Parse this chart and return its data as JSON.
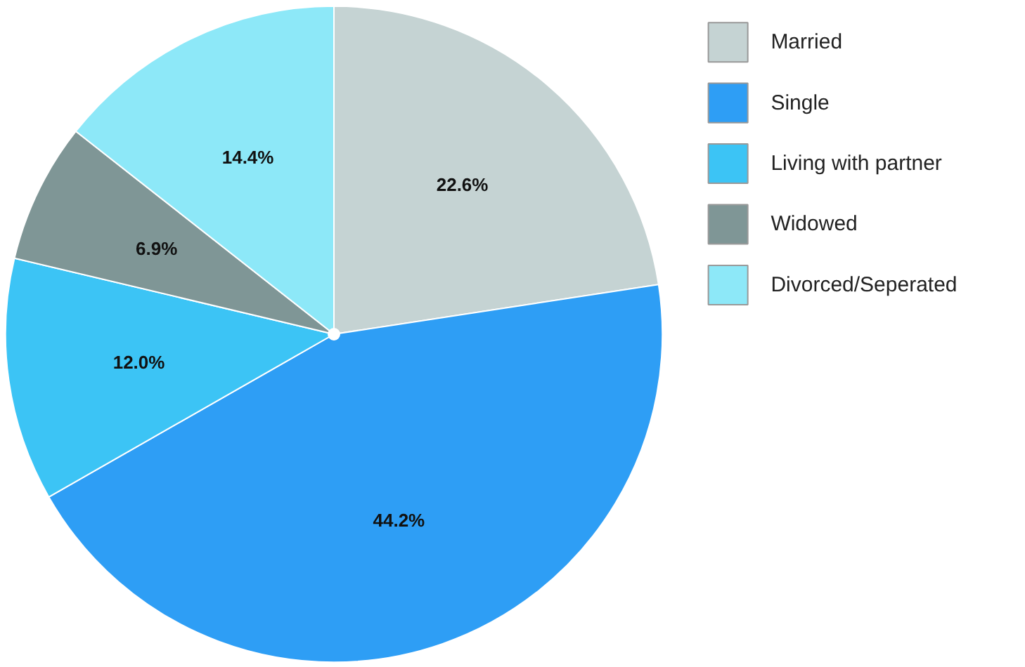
{
  "chart_data": {
    "type": "pie",
    "categories": [
      "Married",
      "Single",
      "Living with partner",
      "Widowed",
      "Divorced/Seperated"
    ],
    "values": [
      22.6,
      44.2,
      12.0,
      6.9,
      14.4
    ],
    "colors": [
      "#c5d3d3",
      "#2e9ef5",
      "#3cc4f5",
      "#7f9696",
      "#8de8f8"
    ],
    "value_labels": [
      "22.6%",
      "44.2%",
      "12.0%",
      "6.9%",
      "14.4%"
    ],
    "legend": "right"
  }
}
